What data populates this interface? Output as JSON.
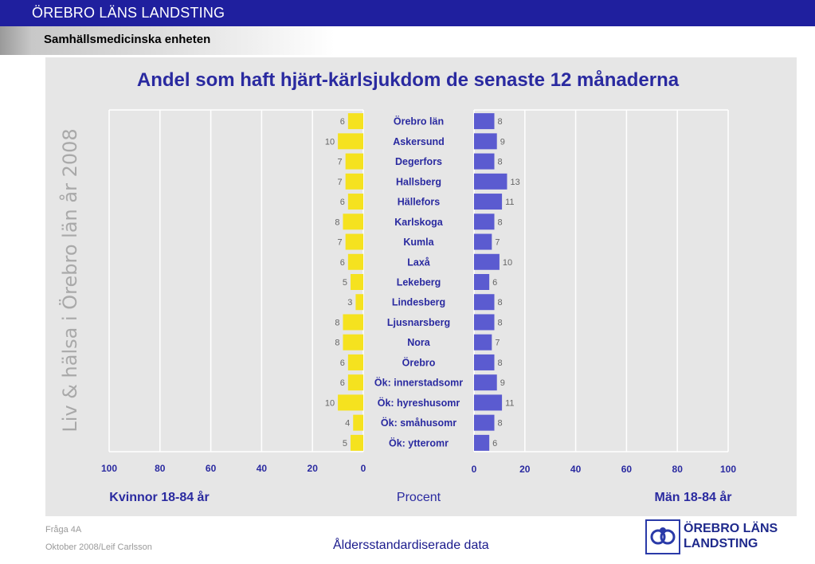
{
  "header": {
    "organization": "ÖREBRO LÄNS LANDSTING",
    "unit": "Samhällsmedicinska enheten"
  },
  "side_text": "Liv & hälsa i Örebro län år 2008",
  "footer": {
    "question": "Fråga 4A",
    "author_date": "Oktober 2008/Leif Carlsson",
    "note": "Åldersstandardiserade data"
  },
  "logo": {
    "line1": "ÖREBRO LÄNS",
    "line2": "LANDSTING",
    "icon": "landsting-emblem-icon"
  },
  "colors": {
    "women": "#f5e21f",
    "men": "#5b5bd0",
    "title": "#2a2aa0",
    "header_bar": "#1f1f9e"
  },
  "chart_data": {
    "type": "bar",
    "orientation": "horizontal",
    "layout": "back-to-back",
    "title": "Andel som haft hjärt-kärlsjukdom de senaste 12 månaderna",
    "xlabel": "Procent",
    "categories": [
      "Örebro län",
      "Askersund",
      "Degerfors",
      "Hallsberg",
      "Hällefors",
      "Karlskoga",
      "Kumla",
      "Laxå",
      "Lekeberg",
      "Lindesberg",
      "Ljusnarsberg",
      "Nora",
      "Örebro",
      "Ök: innerstadsomr",
      "Ök: hyreshusomr",
      "Ök: småhusomr",
      "Ök: ytteromr"
    ],
    "series": [
      {
        "name": "Kvinnor 18-84 år",
        "side": "left",
        "values": [
          6,
          10,
          7,
          7,
          6,
          8,
          7,
          6,
          5,
          3,
          8,
          8,
          6,
          6,
          10,
          4,
          5
        ]
      },
      {
        "name": "Män 18-84 år",
        "side": "right",
        "values": [
          8,
          9,
          8,
          13,
          11,
          8,
          7,
          10,
          6,
          8,
          8,
          7,
          8,
          9,
          11,
          8,
          6
        ]
      }
    ],
    "xlim": [
      0,
      100
    ],
    "xticks": [
      0,
      20,
      40,
      60,
      80,
      100
    ],
    "grid": true
  }
}
